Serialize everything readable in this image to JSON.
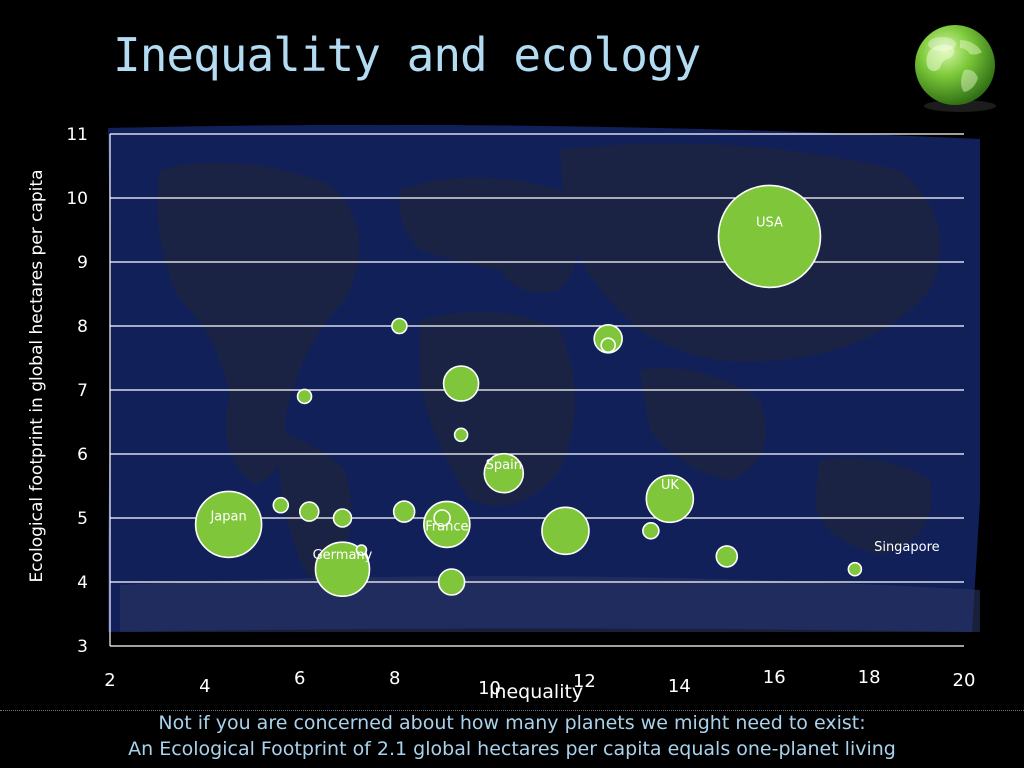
{
  "slide": {
    "title": "Inequality and ecology",
    "footer_line1": "Not if you are concerned about how many planets we might need to exist:",
    "footer_line2": "An Ecological Footprint of 2.1 global hectares per capita equals one-planet living"
  },
  "icons": {
    "corner": "globe-icon"
  },
  "colors": {
    "bubble_fill": "#7fc63a",
    "bubble_stroke": "#ffffff",
    "gridline": "#ffffff",
    "map_ocean": "#12205a",
    "map_land": "#1b2344",
    "title": "#b3dcf3"
  },
  "chart_data": {
    "type": "scatter",
    "xlabel": "Inequality",
    "ylabel": "Ecological footprint in global hectares per capita",
    "xlim": [
      2,
      20
    ],
    "ylim": [
      3,
      11
    ],
    "x_ticks": [
      "2",
      "4",
      "6",
      "8",
      "10",
      "12",
      "14",
      "16",
      "18",
      "20"
    ],
    "y_ticks": [
      "3",
      "4",
      "5",
      "6",
      "7",
      "8",
      "9",
      "10",
      "11"
    ],
    "grid": "horizontal",
    "points": [
      {
        "label": "USA",
        "x": 15.9,
        "y": 9.4,
        "size": 100
      },
      {
        "label": "Japan",
        "x": 4.5,
        "y": 4.9,
        "size": 64
      },
      {
        "label": "Germany",
        "x": 6.9,
        "y": 4.2,
        "size": 52
      },
      {
        "label": "France",
        "x": 9.1,
        "y": 4.9,
        "size": 44
      },
      {
        "label": "Spain",
        "x": 10.3,
        "y": 5.7,
        "size": 37
      },
      {
        "label": "UK",
        "x": 13.8,
        "y": 5.3,
        "size": 45
      },
      {
        "label": "Singapore",
        "x": 17.7,
        "y": 4.2,
        "size": 11
      },
      {
        "label": "",
        "x": 11.6,
        "y": 4.8,
        "size": 45
      },
      {
        "label": "",
        "x": 9.4,
        "y": 7.1,
        "size": 33
      },
      {
        "label": "",
        "x": 12.5,
        "y": 7.8,
        "size": 26
      },
      {
        "label": "",
        "x": 12.5,
        "y": 7.7,
        "size": 12
      },
      {
        "label": "",
        "x": 8.1,
        "y": 8.0,
        "size": 13
      },
      {
        "label": "",
        "x": 6.1,
        "y": 6.9,
        "size": 12
      },
      {
        "label": "",
        "x": 9.4,
        "y": 6.3,
        "size": 11
      },
      {
        "label": "",
        "x": 5.6,
        "y": 5.2,
        "size": 13
      },
      {
        "label": "",
        "x": 6.2,
        "y": 5.1,
        "size": 17
      },
      {
        "label": "",
        "x": 6.9,
        "y": 5.0,
        "size": 16
      },
      {
        "label": "",
        "x": 8.2,
        "y": 5.1,
        "size": 19
      },
      {
        "label": "",
        "x": 9.0,
        "y": 5.0,
        "size": 14
      },
      {
        "label": "",
        "x": 7.3,
        "y": 4.5,
        "size": 8
      },
      {
        "label": "",
        "x": 9.2,
        "y": 4.0,
        "size": 24
      },
      {
        "label": "",
        "x": 13.4,
        "y": 4.8,
        "size": 14
      },
      {
        "label": "",
        "x": 15.0,
        "y": 4.4,
        "size": 19
      }
    ]
  }
}
